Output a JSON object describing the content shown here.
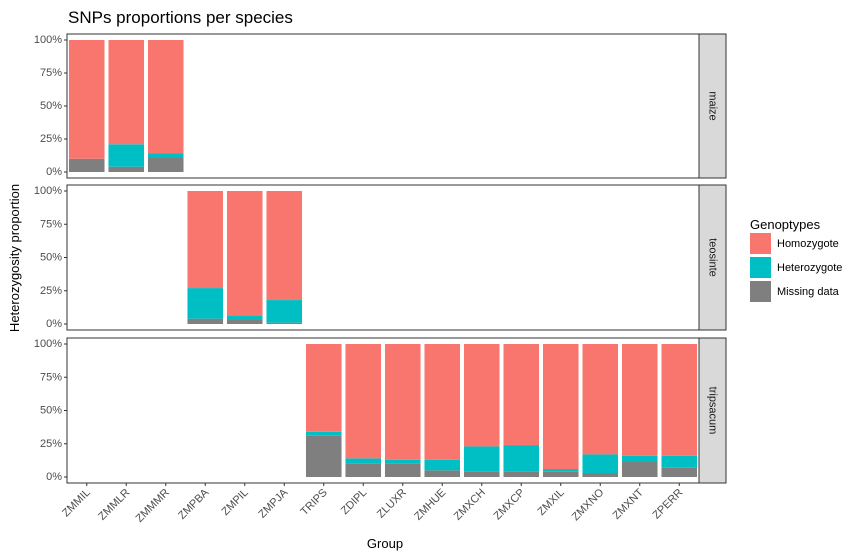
{
  "chart_data": {
    "type": "bar",
    "stacked": true,
    "faceted": true,
    "title": "SNPs proportions per species",
    "xlabel": "Group",
    "ylabel": "Heterozygosity proportion",
    "ylim": [
      0,
      1
    ],
    "y_ticks": [
      "0%",
      "25%",
      "50%",
      "75%",
      "100%"
    ],
    "categories": [
      "ZMMIL",
      "ZMMLR",
      "ZMMMR",
      "ZMPBA",
      "ZMPIL",
      "ZMPJA",
      "TRIPS",
      "ZDIPL",
      "ZLUXR",
      "ZMHUE",
      "ZMXCH",
      "ZMXCP",
      "ZMXIL",
      "ZMXNO",
      "ZMXNT",
      "ZPERR"
    ],
    "legend": {
      "title": "Genoptypes",
      "position": "right",
      "entries": [
        {
          "label": "Homozygote",
          "color": "#F8766D"
        },
        {
          "label": "Heterozygote",
          "color": "#00BFC4"
        },
        {
          "label": "Missing data",
          "color": "#7F7F7F"
        }
      ]
    },
    "facets": [
      {
        "label": "maize",
        "bars": [
          {
            "category": "ZMMIL",
            "missing": 0.1,
            "heterozygote": 0.0,
            "homozygote": 0.9
          },
          {
            "category": "ZMMLR",
            "missing": 0.04,
            "heterozygote": 0.17,
            "homozygote": 0.79
          },
          {
            "category": "ZMMMR",
            "missing": 0.11,
            "heterozygote": 0.03,
            "homozygote": 0.86
          }
        ]
      },
      {
        "label": "teosinte",
        "bars": [
          {
            "category": "ZMPBA",
            "missing": 0.04,
            "heterozygote": 0.23,
            "homozygote": 0.73
          },
          {
            "category": "ZMPIL",
            "missing": 0.03,
            "heterozygote": 0.03,
            "homozygote": 0.94
          },
          {
            "category": "ZMPJA",
            "missing": 0.01,
            "heterozygote": 0.17,
            "homozygote": 0.82
          }
        ]
      },
      {
        "label": "tripsacum",
        "bars": [
          {
            "category": "TRIPS",
            "missing": 0.31,
            "heterozygote": 0.03,
            "homozygote": 0.66
          },
          {
            "category": "ZDIPL",
            "missing": 0.1,
            "heterozygote": 0.04,
            "homozygote": 0.86
          },
          {
            "category": "ZLUXR",
            "missing": 0.1,
            "heterozygote": 0.03,
            "homozygote": 0.87
          },
          {
            "category": "ZMHUE",
            "missing": 0.05,
            "heterozygote": 0.08,
            "homozygote": 0.87
          },
          {
            "category": "ZMXCH",
            "missing": 0.04,
            "heterozygote": 0.19,
            "homozygote": 0.77
          },
          {
            "category": "ZMXCP",
            "missing": 0.04,
            "heterozygote": 0.2,
            "homozygote": 0.76
          },
          {
            "category": "ZMXIL",
            "missing": 0.04,
            "heterozygote": 0.02,
            "homozygote": 0.94
          },
          {
            "category": "ZMXNO",
            "missing": 0.03,
            "heterozygote": 0.14,
            "homozygote": 0.83
          },
          {
            "category": "ZMXNT",
            "missing": 0.12,
            "heterozygote": 0.04,
            "homozygote": 0.84
          },
          {
            "category": "ZPERR",
            "missing": 0.07,
            "heterozygote": 0.09,
            "homozygote": 0.84
          }
        ]
      }
    ]
  }
}
